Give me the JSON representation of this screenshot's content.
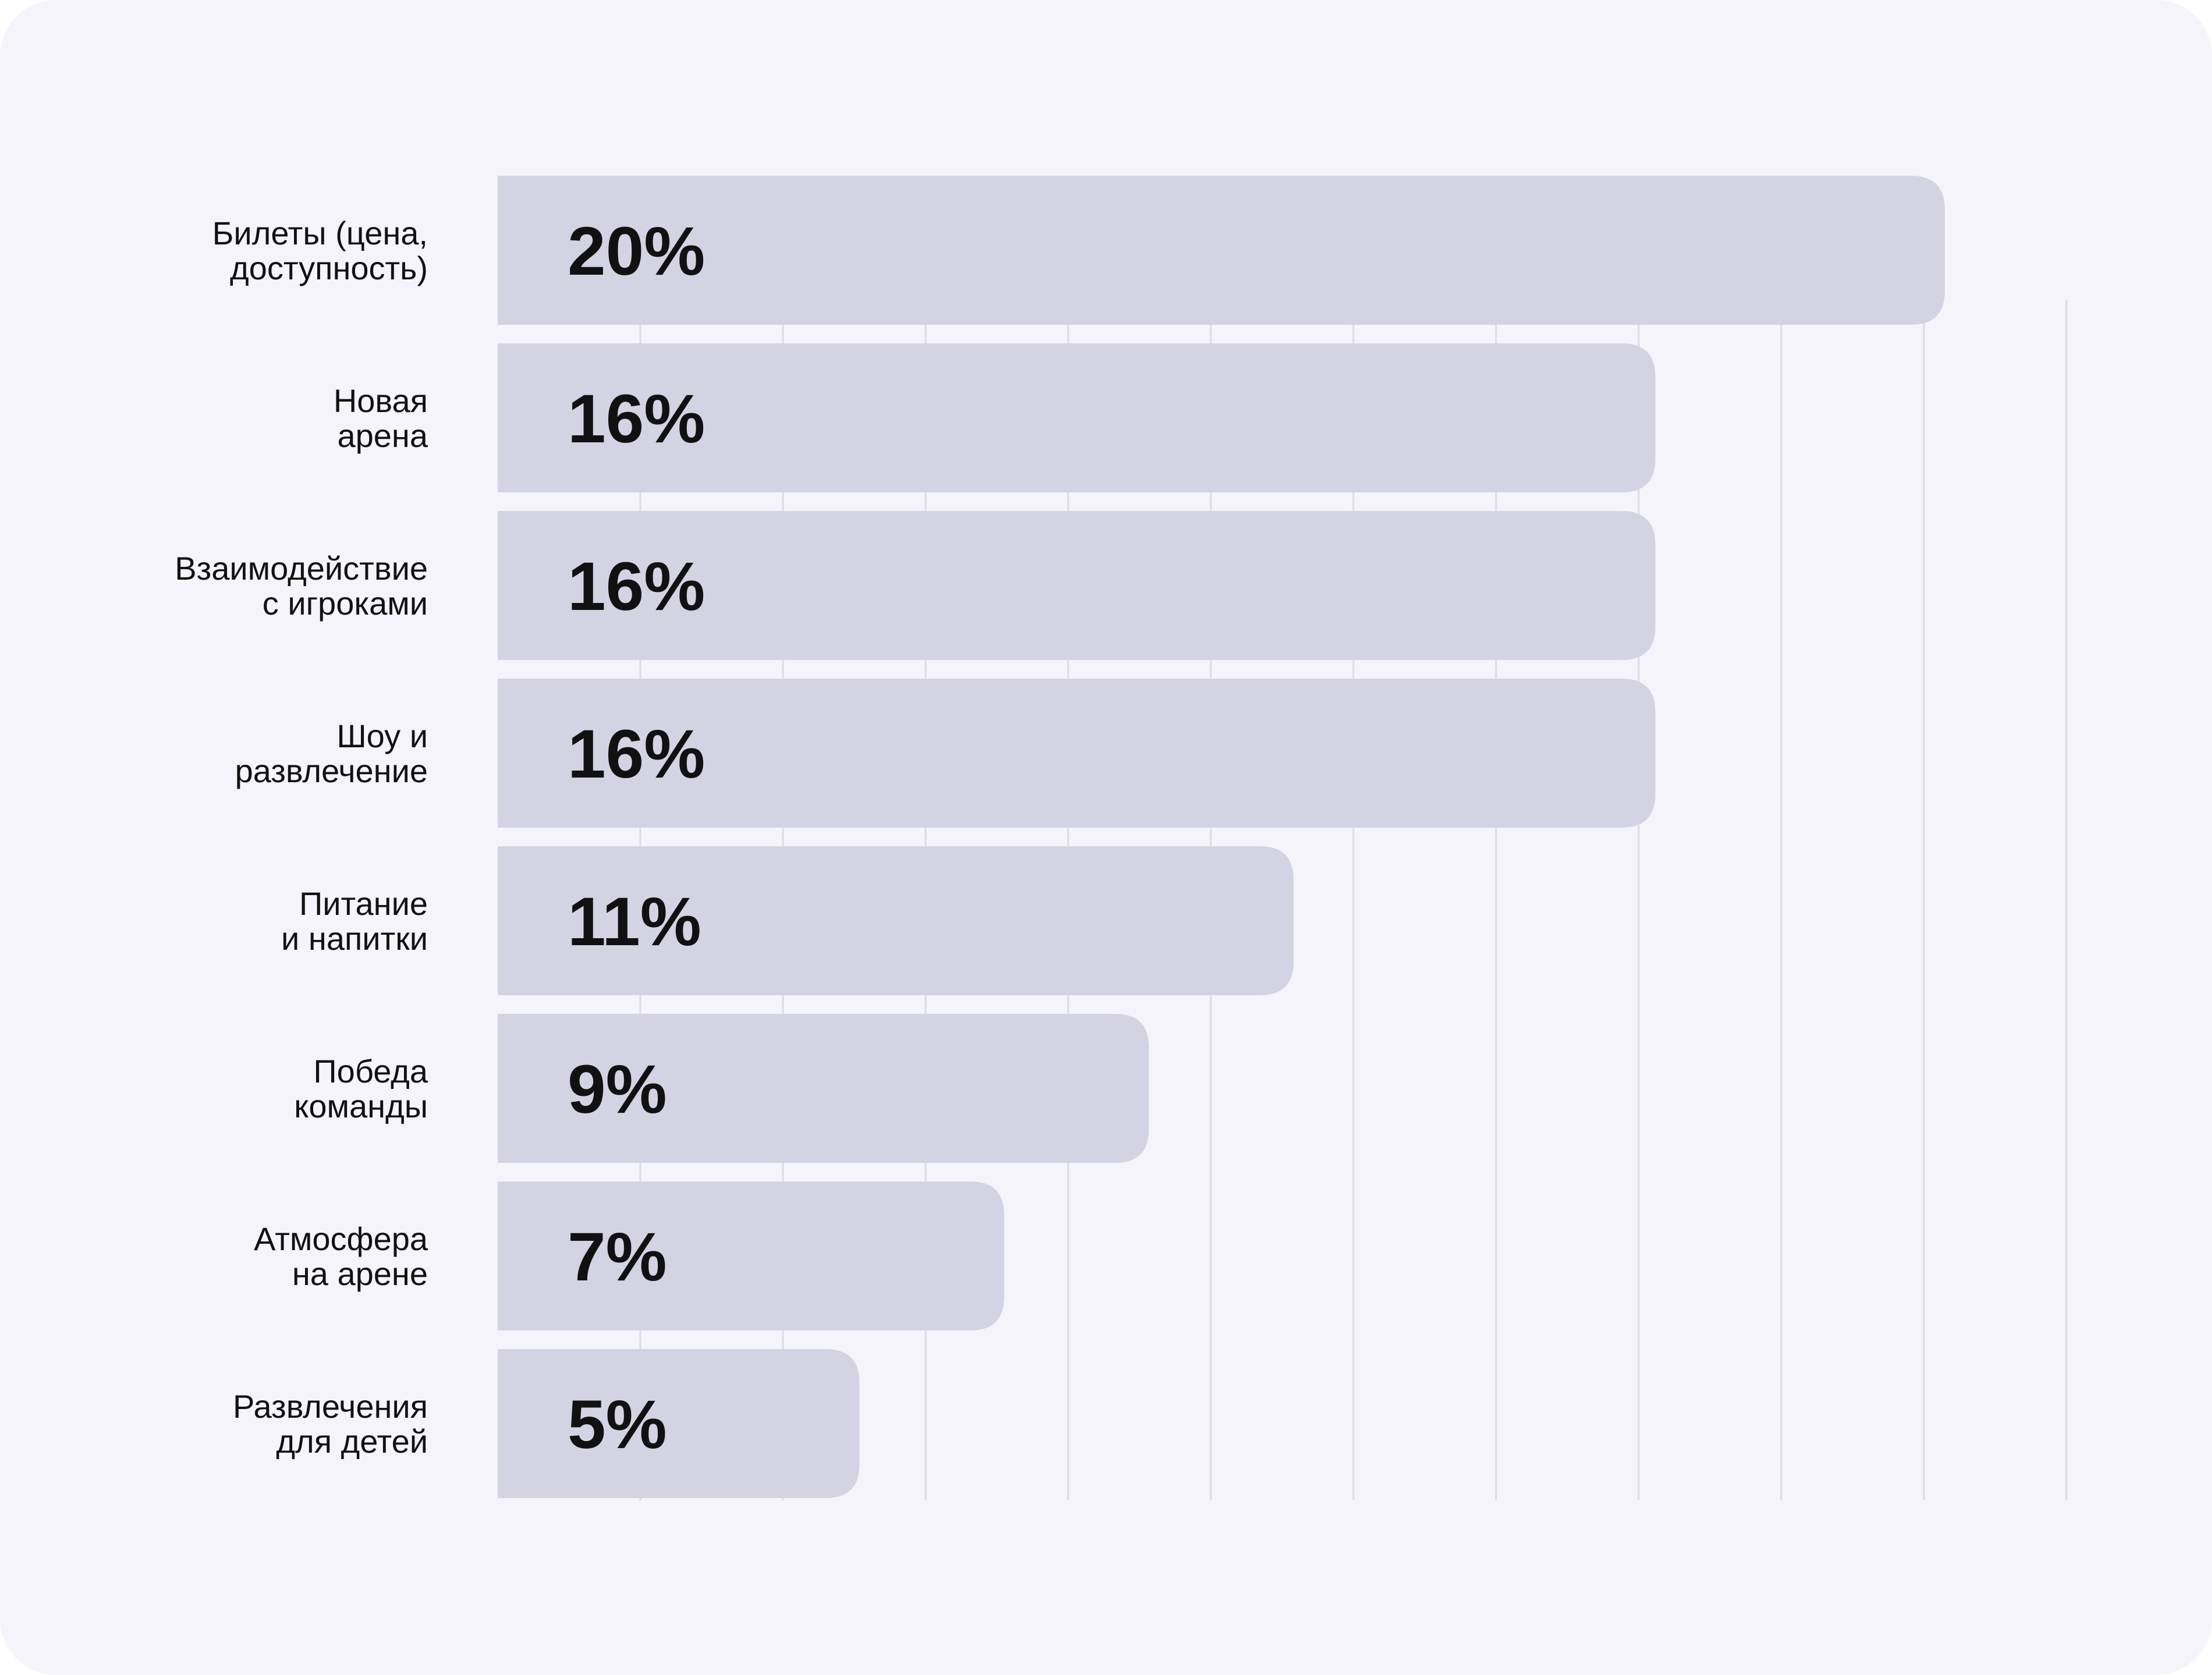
{
  "chart_data": {
    "type": "bar",
    "orientation": "horizontal",
    "categories": [
      [
        "Билеты (цена,",
        "доступность)"
      ],
      [
        "Новая",
        "арена"
      ],
      [
        "Взаимодействие",
        "с игроками"
      ],
      [
        "Шоу и",
        "развлечение"
      ],
      [
        "Питание",
        "и напитки"
      ],
      [
        "Победа",
        "команды"
      ],
      [
        "Атмосфера",
        "на арене"
      ],
      [
        "Развлечения",
        "для детей"
      ]
    ],
    "values": [
      20,
      16,
      16,
      16,
      11,
      9,
      7,
      5
    ],
    "value_labels": [
      "20%",
      "16%",
      "16%",
      "16%",
      "11%",
      "9%",
      "7%",
      "5%"
    ],
    "unit": "%",
    "grid": true,
    "colors": {
      "background": "#f5f4fb",
      "bar": "#d3d3e3",
      "gridline": "#dcdbe6",
      "text": "#111111"
    }
  }
}
